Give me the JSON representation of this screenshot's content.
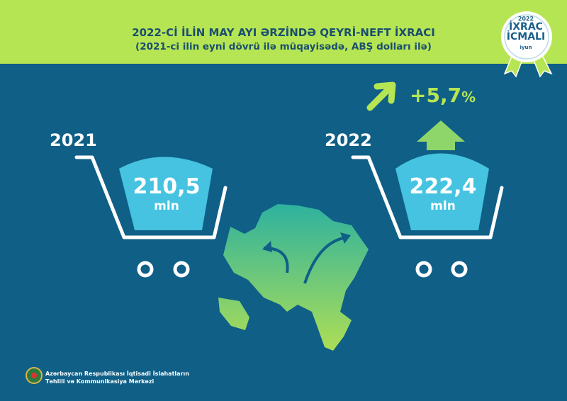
{
  "header": {
    "title": "2022-Cİ İLİN MAY AYI ƏRZİNDƏ QEYRİ-NEFT İXRACI",
    "subtitle": "(2021-ci ilin eyni dövrü ilə müqayisədə, ABŞ dolları ilə)"
  },
  "badge": {
    "year": "2022",
    "line1": "İXRAC",
    "line2": "İCMALI",
    "month": "iyun"
  },
  "left": {
    "year": "2021",
    "value": "210,5",
    "unit": "mln"
  },
  "right": {
    "year": "2022",
    "value": "222,4",
    "unit": "mln"
  },
  "change": {
    "value": "+5,7",
    "unit": "%",
    "icon": "arrow-up-right-icon"
  },
  "footer": {
    "line1": "Azərbaycan Respublikası İqtisadi İslahatların",
    "line2": "Təhlili və Kommunikasiya Mərkəzi"
  },
  "colors": {
    "lime": "#b6e553",
    "blue": "#0f5f87",
    "cyan": "#45c3e0"
  }
}
